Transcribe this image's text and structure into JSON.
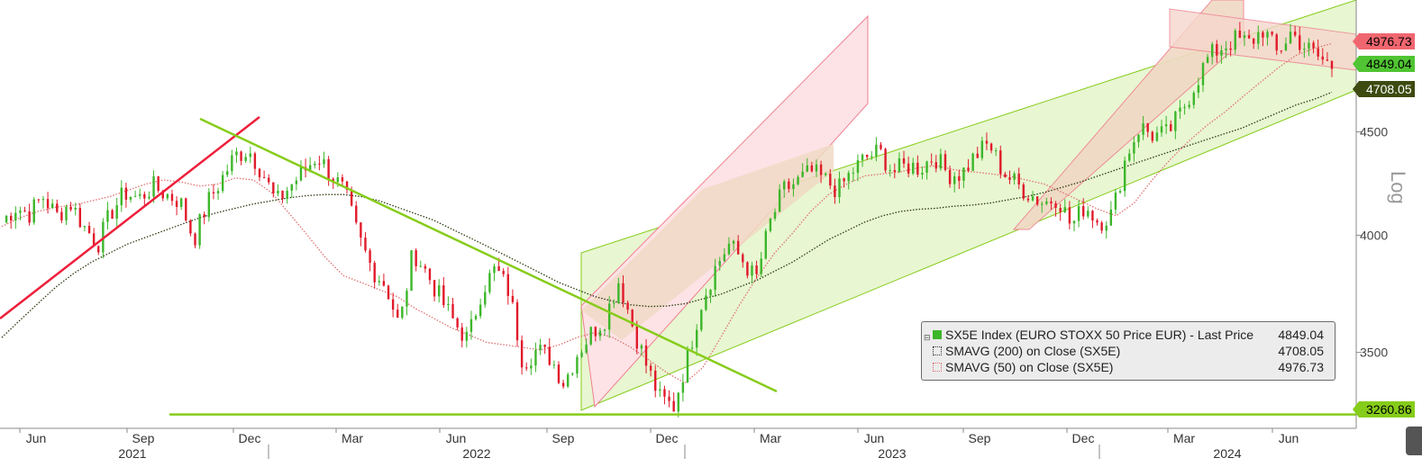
{
  "chart_data": {
    "type": "line",
    "title": "",
    "ylabel": "Log",
    "y_scale": "log",
    "ylim": [
      3180,
      5200
    ],
    "y_ticks": [
      3500,
      4000,
      4500
    ],
    "x_month_labels": [
      "Jun",
      "Sep",
      "Dec",
      "Mar",
      "Jun",
      "Sep",
      "Dec",
      "Mar",
      "Jun",
      "Sep",
      "Dec",
      "Mar",
      "Jun"
    ],
    "x_year_labels": [
      "2021",
      "2022",
      "2023",
      "2024"
    ],
    "series": [
      {
        "name": "SX5E Index (EURO STOXX 50 Price EUR) - Last Price",
        "last": "4849.04",
        "color": "#3cb62a",
        "values": [
          4060,
          4130,
          4100,
          4180,
          4090,
          4150,
          4040,
          3960,
          4110,
          4200,
          4170,
          4230,
          4190,
          4160,
          3980,
          4150,
          4260,
          4380,
          4410,
          4300,
          4150,
          4230,
          4300,
          4380,
          4290,
          4200,
          3990,
          3850,
          3780,
          3600,
          3930,
          3830,
          3720,
          3620,
          3550,
          3760,
          3850,
          3750,
          3460,
          3510,
          3480,
          3380,
          3500,
          3580,
          3640,
          3800,
          3610,
          3450,
          3320,
          3290,
          3480,
          3700,
          3850,
          3960,
          3890,
          3800,
          4050,
          4210,
          4250,
          4300,
          4260,
          4210,
          4300,
          4370,
          4400,
          4300,
          4330,
          4320,
          4380,
          4290,
          4290,
          4380,
          4440,
          4300,
          4240,
          4190,
          4150,
          4180,
          4040,
          4140,
          4060,
          4100,
          4380,
          4530,
          4480,
          4490,
          4600,
          4750,
          4900,
          4960,
          5000,
          4980,
          5060,
          4920,
          5040,
          4960,
          4900,
          4849.04
        ]
      },
      {
        "name": "SMAVG (200) on Close (SX5E)",
        "last": "4708.05",
        "color": "#2a3a10",
        "values": [
          3560,
          3630,
          3700,
          3770,
          3830,
          3880,
          3920,
          3960,
          3990,
          4020,
          4050,
          4080,
          4105,
          4125,
          4145,
          4160,
          4175,
          4185,
          4190,
          4190,
          4180,
          4160,
          4130,
          4100,
          4070,
          4030,
          3990,
          3950,
          3910,
          3870,
          3830,
          3790,
          3760,
          3730,
          3710,
          3695,
          3688,
          3690,
          3700,
          3720,
          3740,
          3770,
          3800,
          3840,
          3880,
          3930,
          3980,
          4020,
          4060,
          4090,
          4110,
          4120,
          4125,
          4135,
          4140,
          4150,
          4165,
          4180,
          4200,
          4225,
          4250,
          4280,
          4310,
          4340,
          4370,
          4400,
          4430,
          4460,
          4490,
          4520,
          4560,
          4600,
          4640,
          4670,
          4708.05
        ]
      },
      {
        "name": "SMAVG (50) on Close (SX5E)",
        "last": "4976.73",
        "color": "#e07070",
        "values": [
          4040,
          4080,
          4110,
          4130,
          4140,
          4160,
          4180,
          4210,
          4240,
          4260,
          4250,
          4230,
          4240,
          4270,
          4260,
          4200,
          4100,
          4000,
          3900,
          3820,
          3790,
          3760,
          3730,
          3680,
          3640,
          3600,
          3570,
          3540,
          3530,
          3520,
          3510,
          3530,
          3560,
          3580,
          3560,
          3520,
          3470,
          3420,
          3380,
          3440,
          3560,
          3690,
          3810,
          3920,
          4010,
          4110,
          4190,
          4240,
          4280,
          4290,
          4300,
          4320,
          4330,
          4310,
          4300,
          4290,
          4280,
          4260,
          4240,
          4200,
          4160,
          4120,
          4090,
          4150,
          4260,
          4360,
          4450,
          4530,
          4600,
          4680,
          4760,
          4840,
          4910,
          4950,
          4976.73
        ]
      }
    ],
    "price_tags": [
      "4976.73",
      "4849.04",
      "4708.05",
      "3260.86"
    ],
    "support_level": 3260.86,
    "trendlines": [
      {
        "name": "rising trendline 2021",
        "color": "#ee1f3b"
      },
      {
        "name": "falling trendline 2022",
        "color": "#86cc1a"
      },
      {
        "name": "support line",
        "color": "#86cc1a"
      }
    ],
    "legend_position": "bottom-right"
  },
  "legend": {
    "main_label": "SX5E Index (EURO STOXX 50 Price EUR) - Last Price",
    "main_value": "4849.04",
    "sma200_label": "SMAVG (200)  on Close (SX5E)",
    "sma200_value": "4708.05",
    "sma50_label": "SMAVG (50)  on Close (SX5E)",
    "sma50_value": "4976.73"
  },
  "colors": {
    "up": "#3cb62a",
    "down": "#e01a2a",
    "channel_green": "#86cc1a",
    "channel_red": "#f08090",
    "tag_red": "#f0666f",
    "tag_green": "#50c432",
    "tag_dark": "#3d4a10",
    "tag_lime": "#86cc1a"
  }
}
